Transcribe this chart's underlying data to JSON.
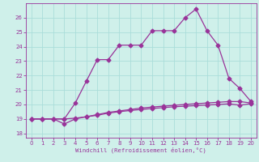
{
  "xlabel": "Windchill (Refroidissement éolien,°C)",
  "background_color": "#cff0ea",
  "grid_color": "#aaddda",
  "line_color": "#993399",
  "xlim": [
    -0.5,
    20.5
  ],
  "ylim": [
    17.7,
    27.0
  ],
  "yticks": [
    18,
    19,
    20,
    21,
    22,
    23,
    24,
    25,
    26
  ],
  "xticks": [
    0,
    1,
    2,
    3,
    4,
    5,
    6,
    7,
    8,
    9,
    10,
    11,
    12,
    13,
    14,
    15,
    16,
    17,
    18,
    19,
    20
  ],
  "curve1_x": [
    0,
    1,
    2,
    3,
    4,
    5,
    6,
    7,
    8,
    9,
    10,
    11,
    12,
    13,
    14,
    15,
    16,
    17,
    18,
    19,
    20
  ],
  "curve1_y": [
    19.0,
    19.0,
    19.0,
    19.0,
    20.1,
    21.6,
    23.1,
    23.1,
    24.1,
    24.1,
    24.1,
    25.1,
    25.1,
    25.1,
    26.0,
    26.6,
    25.1,
    24.1,
    21.8,
    21.1,
    20.2
  ],
  "curve2_x": [
    0,
    1,
    2,
    3,
    4,
    5,
    6,
    7,
    8,
    9,
    10,
    11,
    12,
    13,
    14,
    15,
    16,
    17,
    18,
    19,
    20
  ],
  "curve2_y": [
    19.0,
    19.0,
    19.0,
    18.65,
    19.0,
    19.15,
    19.3,
    19.45,
    19.55,
    19.65,
    19.75,
    19.82,
    19.88,
    19.94,
    20.0,
    20.05,
    20.1,
    20.15,
    20.2,
    20.2,
    20.1
  ],
  "curve3_x": [
    0,
    1,
    2,
    3,
    4,
    5,
    6,
    7,
    8,
    9,
    10,
    11,
    12,
    13,
    14,
    15,
    16,
    17,
    18,
    19,
    20
  ],
  "curve3_y": [
    19.0,
    19.0,
    19.0,
    19.0,
    19.05,
    19.15,
    19.25,
    19.4,
    19.5,
    19.58,
    19.65,
    19.72,
    19.78,
    19.84,
    19.88,
    19.92,
    19.96,
    20.0,
    20.04,
    19.95,
    20.05
  ]
}
